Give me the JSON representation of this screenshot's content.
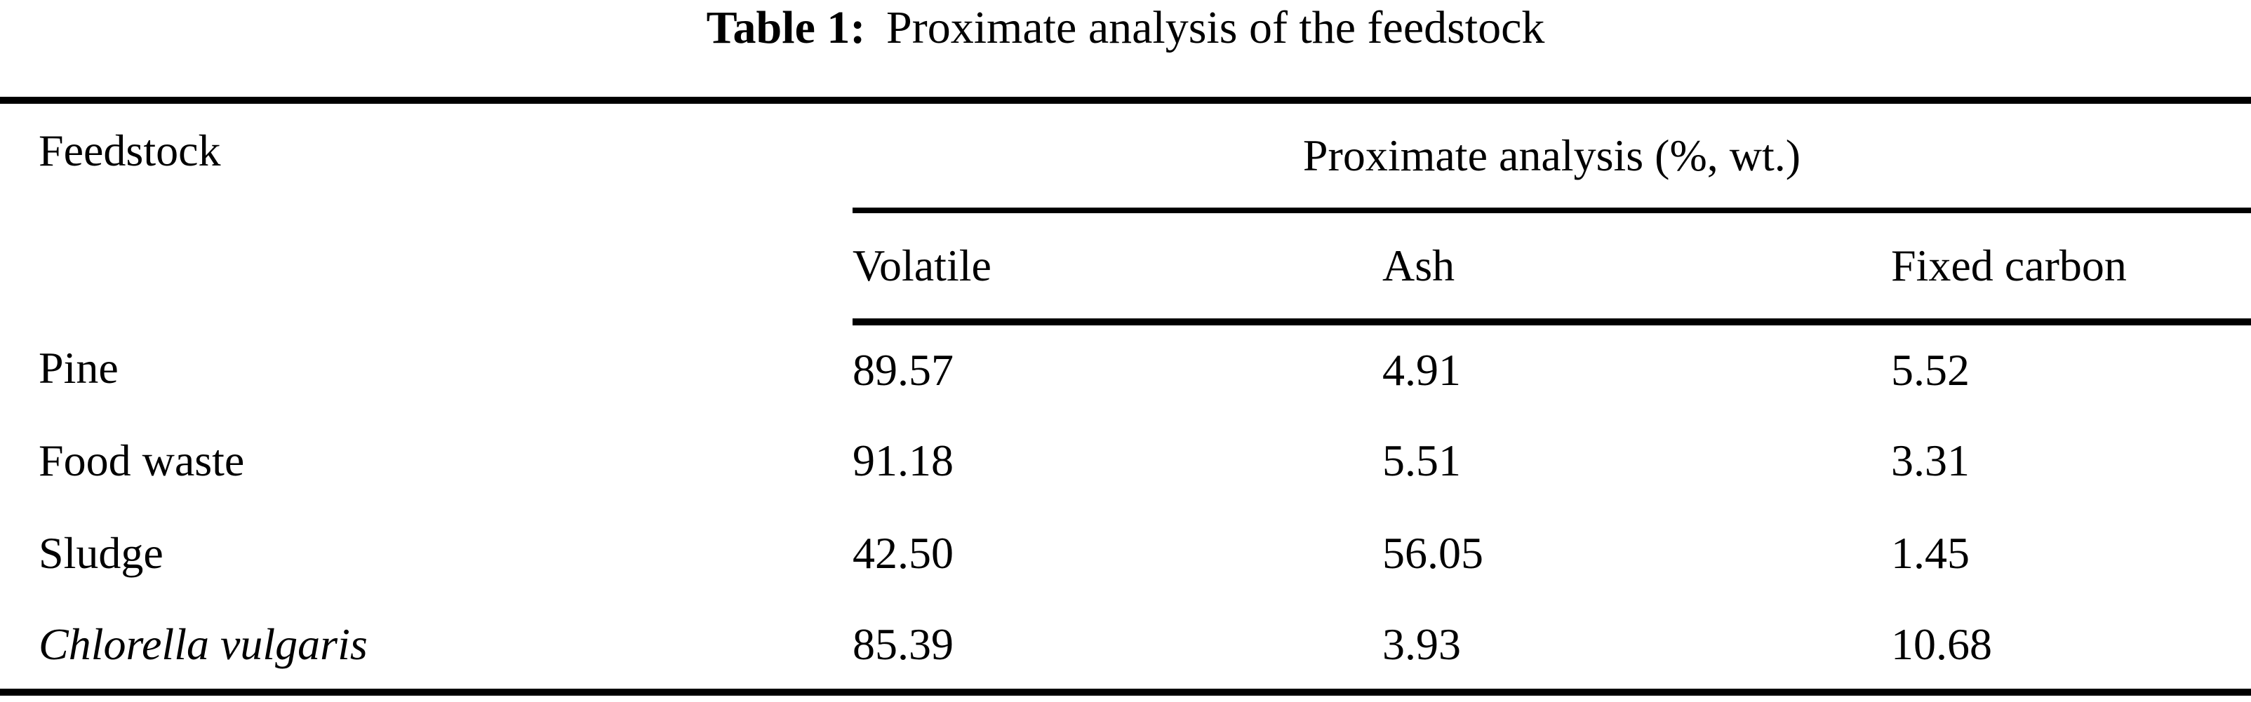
{
  "caption": {
    "label": "Table 1:",
    "title": "Proximate analysis of the feedstock"
  },
  "table": {
    "feedstock_header": "Feedstock",
    "group_header": "Proximate analysis (%, wt.)",
    "columns": [
      "Volatile",
      "Ash",
      "Fixed carbon"
    ],
    "rows": [
      {
        "feedstock": "Pine",
        "volatile": "89.57",
        "ash": "4.91",
        "fixed_carbon": "5.52"
      },
      {
        "feedstock": "Food waste",
        "volatile": "91.18",
        "ash": "5.51",
        "fixed_carbon": "3.31"
      },
      {
        "feedstock": "Sludge",
        "volatile": "42.50",
        "ash": "56.05",
        "fixed_carbon": "1.45"
      },
      {
        "feedstock": "Chlorella vulgaris",
        "volatile": "85.39",
        "ash": "3.93",
        "fixed_carbon": "10.68"
      }
    ]
  },
  "chart_data": {
    "type": "table",
    "title": "Table 1: Proximate analysis of the feedstock",
    "units": "%, wt.",
    "columns": [
      "Feedstock",
      "Volatile",
      "Ash",
      "Fixed carbon"
    ],
    "rows": [
      [
        "Pine",
        89.57,
        4.91,
        5.52
      ],
      [
        "Food waste",
        91.18,
        5.51,
        3.31
      ],
      [
        "Sludge",
        42.5,
        56.05,
        1.45
      ],
      [
        "Chlorella vulgaris",
        85.39,
        3.93,
        10.68
      ]
    ]
  }
}
